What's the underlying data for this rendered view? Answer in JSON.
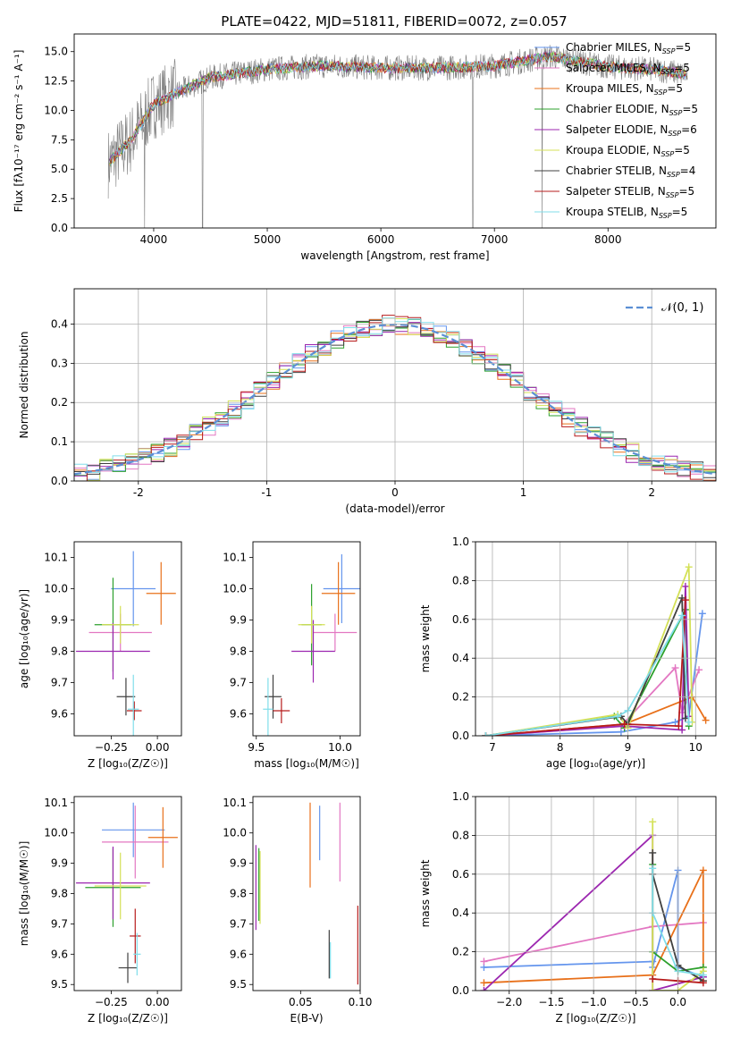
{
  "figure_title": "PLATE=0422, MJD=51811, FIBERID=0072, z=0.057",
  "models": [
    {
      "name": "Chabrier MILES",
      "nssp": "5",
      "color": "#6495ed"
    },
    {
      "name": "Salpeter MILES",
      "nssp": "5",
      "color": "#e377c2"
    },
    {
      "name": "Kroupa MILES",
      "nssp": "5",
      "color": "#e8701a"
    },
    {
      "name": "Chabrier ELODIE",
      "nssp": "5",
      "color": "#2ca02c"
    },
    {
      "name": "Salpeter ELODIE",
      "nssp": "6",
      "color": "#9c27b0"
    },
    {
      "name": "Kroupa ELODIE",
      "nssp": "5",
      "color": "#d4e157"
    },
    {
      "name": "Chabrier STELIB",
      "nssp": "4",
      "color": "#404040"
    },
    {
      "name": "Salpeter STELIB",
      "nssp": "5",
      "color": "#b71c1c"
    },
    {
      "name": "Kroupa STELIB",
      "nssp": "5",
      "color": "#80deea"
    }
  ],
  "nssp_prefix": "N",
  "nssp_sub": "SSP",
  "spectrum_color": "#7f7f7f",
  "chart_data": [
    {
      "id": "spectrum",
      "type": "line",
      "xlabel": "wavelength [Angstrom, rest frame]",
      "ylabel": "Flux [fλ10⁻¹⁷ erg cm⁻² s⁻¹ A⁻¹]",
      "xlim": [
        3300,
        8950
      ],
      "ylim": [
        0,
        16.5
      ],
      "xticks": [
        4000,
        5000,
        6000,
        7000,
        8000
      ],
      "yticks": [
        0.0,
        2.5,
        5.0,
        7.5,
        10.0,
        12.5,
        15.0
      ],
      "continuum_x": [
        3600,
        3800,
        4000,
        4200,
        4500,
        5000,
        5500,
        6000,
        6500,
        7000,
        7500,
        8000,
        8500,
        8700
      ],
      "continuum_y": [
        5.5,
        7.5,
        10.5,
        11.5,
        12.8,
        13.5,
        13.8,
        13.6,
        13.6,
        13.8,
        14.6,
        13.7,
        13.4,
        13.0
      ],
      "spikes_x": [
        3920,
        4430,
        6810,
        7420
      ],
      "legend": "upper-right"
    },
    {
      "id": "residuals",
      "type": "histogram",
      "xlabel": "(data-model)/error",
      "ylabel": "Normed distribution",
      "xlim": [
        -2.5,
        2.5
      ],
      "ylim": [
        0,
        0.49
      ],
      "xticks": [
        -2,
        -1,
        0,
        1,
        2
      ],
      "yticks": [
        0.0,
        0.1,
        0.2,
        0.3,
        0.4
      ],
      "legend_label": "𝒩(0, 1)",
      "legend_color": "#5b8fd4",
      "bin_width": 0.1,
      "grid": true
    },
    {
      "id": "age_vs_Z",
      "type": "errorbar",
      "xlabel": "Z [log₁₀(Z/Z☉)]",
      "ylabel": "age  [log₁₀(age/yr)]",
      "xlim": [
        -0.45,
        0.13
      ],
      "ylim": [
        9.53,
        10.15
      ],
      "xticks": [
        -0.25,
        0.0
      ],
      "xtick_labels": [
        "−0.25",
        "0.00"
      ],
      "yticks": [
        9.6,
        9.7,
        9.8,
        9.9,
        10.0,
        10.1
      ],
      "points": [
        {
          "m": 0,
          "x": -0.13,
          "y": 10.0,
          "xe": 0.12,
          "ye": 0.12
        },
        {
          "m": 1,
          "x": -0.2,
          "y": 9.86,
          "xe": 0.17,
          "ye": 0.06
        },
        {
          "m": 2,
          "x": 0.02,
          "y": 9.985,
          "xe": 0.08,
          "ye": 0.1
        },
        {
          "m": 3,
          "x": -0.24,
          "y": 9.885,
          "xe": 0.1,
          "ye": 0.15
        },
        {
          "m": 4,
          "x": -0.24,
          "y": 9.8,
          "xe": 0.2,
          "ye": 0.09
        },
        {
          "m": 5,
          "x": -0.2,
          "y": 9.885,
          "xe": 0.1,
          "ye": 0.06
        },
        {
          "m": 6,
          "x": -0.17,
          "y": 9.655,
          "xe": 0.05,
          "ye": 0.06
        },
        {
          "m": 7,
          "x": -0.125,
          "y": 9.61,
          "xe": 0.04,
          "ye": 0.03
        },
        {
          "m": 8,
          "x": -0.13,
          "y": 9.615,
          "xe": 0.03,
          "ye": 0.11
        }
      ]
    },
    {
      "id": "age_vs_mass",
      "type": "errorbar",
      "xlabel": "mass [log₁₀(M/M☉)]",
      "xlim": [
        9.48,
        10.12
      ],
      "ylim": [
        9.53,
        10.15
      ],
      "xticks": [
        9.5,
        10.0
      ],
      "xtick_labels": [
        "9.5",
        "10.0"
      ],
      "yticks": [
        9.6,
        9.7,
        9.8,
        9.9,
        10.0,
        10.1
      ],
      "points": [
        {
          "m": 0,
          "x": 10.01,
          "y": 10.0,
          "xe": 0.11,
          "ye": 0.11
        },
        {
          "m": 1,
          "x": 9.97,
          "y": 9.86,
          "xe": 0.13,
          "ye": 0.06
        },
        {
          "m": 2,
          "x": 9.99,
          "y": 9.985,
          "xe": 0.1,
          "ye": 0.1
        },
        {
          "m": 3,
          "x": 9.83,
          "y": 9.885,
          "xe": 0.06,
          "ye": 0.13
        },
        {
          "m": 4,
          "x": 9.84,
          "y": 9.8,
          "xe": 0.13,
          "ye": 0.1
        },
        {
          "m": 5,
          "x": 9.83,
          "y": 9.885,
          "xe": 0.08,
          "ye": 0.06
        },
        {
          "m": 6,
          "x": 9.6,
          "y": 9.655,
          "xe": 0.05,
          "ye": 0.07
        },
        {
          "m": 7,
          "x": 9.65,
          "y": 9.61,
          "xe": 0.05,
          "ye": 0.04
        },
        {
          "m": 8,
          "x": 9.57,
          "y": 9.615,
          "xe": 0.03,
          "ye": 0.1
        }
      ]
    },
    {
      "id": "massweight_vs_age",
      "type": "line",
      "xlabel": "age  [log₁₀(age/yr)]",
      "ylabel": "mass weight",
      "xlim": [
        6.75,
        10.3
      ],
      "ylim": [
        0,
        1.0
      ],
      "xticks": [
        7,
        8,
        9,
        10
      ],
      "yticks": [
        0.0,
        0.2,
        0.4,
        0.6,
        0.8,
        1.0
      ],
      "grid": true,
      "series": [
        {
          "m": 0,
          "x": [
            6.9,
            8.9,
            9.7,
            9.9,
            10.1
          ],
          "y": [
            0.0,
            0.02,
            0.07,
            0.1,
            0.63
          ]
        },
        {
          "m": 1,
          "x": [
            6.9,
            8.9,
            9.7,
            9.8,
            10.05
          ],
          "y": [
            0.0,
            0.05,
            0.35,
            0.12,
            0.34
          ]
        },
        {
          "m": 2,
          "x": [
            6.9,
            8.95,
            9.95,
            10.15
          ],
          "y": [
            0.0,
            0.06,
            0.2,
            0.08
          ]
        },
        {
          "m": 3,
          "x": [
            6.9,
            8.8,
            8.95,
            9.85,
            9.9
          ],
          "y": [
            0.0,
            0.1,
            0.04,
            0.65,
            0.05
          ]
        },
        {
          "m": 4,
          "x": [
            6.9,
            8.95,
            9.8,
            9.85,
            9.9
          ],
          "y": [
            0.0,
            0.05,
            0.03,
            0.77,
            0.1
          ]
        },
        {
          "m": 5,
          "x": [
            6.9,
            8.85,
            9.0,
            9.9,
            9.95
          ],
          "y": [
            0.0,
            0.11,
            0.04,
            0.87,
            0.07
          ]
        },
        {
          "m": 6,
          "x": [
            6.9,
            8.9,
            9.0,
            9.8,
            9.85
          ],
          "y": [
            0.0,
            0.1,
            0.06,
            0.71,
            0.09
          ]
        },
        {
          "m": 7,
          "x": [
            6.9,
            8.95,
            9.75,
            9.85
          ],
          "y": [
            0.0,
            0.06,
            0.05,
            0.7
          ]
        },
        {
          "m": 8,
          "x": [
            6.9,
            8.85,
            9.0,
            9.8,
            9.9
          ],
          "y": [
            0.0,
            0.1,
            0.13,
            0.62,
            0.07
          ]
        }
      ]
    },
    {
      "id": "mass_vs_Z",
      "type": "errorbar",
      "xlabel": "Z [log₁₀(Z/Z☉)]",
      "ylabel": "mass [log₁₀(M/M☉)]",
      "xlim": [
        -0.45,
        0.13
      ],
      "ylim": [
        9.48,
        10.12
      ],
      "xticks": [
        -0.25,
        0.0
      ],
      "xtick_labels": [
        "−0.25",
        "0.00"
      ],
      "yticks": [
        9.5,
        9.6,
        9.7,
        9.8,
        9.9,
        10.0,
        10.1
      ],
      "points": [
        {
          "m": 0,
          "x": -0.13,
          "y": 10.01,
          "xe": 0.17,
          "ye": 0.09
        },
        {
          "m": 1,
          "x": -0.12,
          "y": 9.97,
          "xe": 0.18,
          "ye": 0.12
        },
        {
          "m": 2,
          "x": 0.03,
          "y": 9.985,
          "xe": 0.08,
          "ye": 0.1
        },
        {
          "m": 3,
          "x": -0.24,
          "y": 9.82,
          "xe": 0.15,
          "ye": 0.13
        },
        {
          "m": 4,
          "x": -0.24,
          "y": 9.835,
          "xe": 0.2,
          "ye": 0.12
        },
        {
          "m": 5,
          "x": -0.2,
          "y": 9.825,
          "xe": 0.14,
          "ye": 0.11
        },
        {
          "m": 6,
          "x": -0.16,
          "y": 9.555,
          "xe": 0.05,
          "ye": 0.05
        },
        {
          "m": 7,
          "x": -0.12,
          "y": 9.66,
          "xe": 0.03,
          "ye": 0.09
        },
        {
          "m": 8,
          "x": -0.11,
          "y": 9.6,
          "xe": 0.02,
          "ye": 0.07
        }
      ]
    },
    {
      "id": "mass_vs_ebv",
      "type": "errorbar",
      "xlabel": "E(B-V)",
      "xlim": [
        0.01,
        0.1
      ],
      "ylim": [
        9.48,
        10.12
      ],
      "xticks": [
        0.05,
        0.1
      ],
      "xtick_labels": [
        "0.05",
        "0.10"
      ],
      "yticks": [
        9.5,
        9.6,
        9.7,
        9.8,
        9.9,
        10.0,
        10.1
      ],
      "points": [
        {
          "m": 0,
          "x": 0.066,
          "y": 10.0,
          "xe": 0,
          "ye": 0.09
        },
        {
          "m": 1,
          "x": 0.083,
          "y": 9.97,
          "xe": 0,
          "ye": 0.13
        },
        {
          "m": 2,
          "x": 0.058,
          "y": 9.96,
          "xe": 0,
          "ye": 0.14
        },
        {
          "m": 3,
          "x": 0.015,
          "y": 9.83,
          "xe": 0,
          "ye": 0.12
        },
        {
          "m": 4,
          "x": 0.0125,
          "y": 9.82,
          "xe": 0,
          "ye": 0.14
        },
        {
          "m": 5,
          "x": 0.016,
          "y": 9.82,
          "xe": 0,
          "ye": 0.12
        },
        {
          "m": 6,
          "x": 0.074,
          "y": 9.6,
          "xe": 0,
          "ye": 0.08
        },
        {
          "m": 7,
          "x": 0.098,
          "y": 9.63,
          "xe": 0,
          "ye": 0.13
        },
        {
          "m": 8,
          "x": 0.075,
          "y": 9.58,
          "xe": 0,
          "ye": 0.06
        }
      ]
    },
    {
      "id": "massweight_vs_Z",
      "type": "line",
      "xlabel": "Z [log₁₀(Z/Z☉)]",
      "ylabel": "mass weight",
      "xlim": [
        -2.4,
        0.45
      ],
      "ylim": [
        0,
        1.0
      ],
      "xticks": [
        -2.0,
        -1.5,
        -1.0,
        -0.5,
        0.0
      ],
      "xtick_labels": [
        "−2.0",
        "−1.5",
        "−1.0",
        "−0.5",
        "0.0"
      ],
      "yticks": [
        0.0,
        0.2,
        0.4,
        0.6,
        0.8,
        1.0
      ],
      "grid": true,
      "series": [
        {
          "m": 0,
          "x": [
            -2.3,
            -0.3,
            -0.3,
            0.0,
            0.0,
            0.3
          ],
          "y": [
            0.12,
            0.15,
            0.12,
            0.62,
            0.12,
            0.07
          ]
        },
        {
          "m": 1,
          "x": [
            -2.3,
            -0.3,
            0.3
          ],
          "y": [
            0.15,
            0.33,
            0.35
          ]
        },
        {
          "m": 2,
          "x": [
            -2.3,
            -0.3,
            0.3,
            0.3
          ],
          "y": [
            0.04,
            0.08,
            0.62,
            0.05
          ]
        },
        {
          "m": 3,
          "x": [
            -0.3,
            -0.3,
            0.0,
            0.3
          ],
          "y": [
            0.65,
            0.2,
            0.1,
            0.12
          ]
        },
        {
          "m": 4,
          "x": [
            -2.3,
            -0.3,
            -0.3,
            0.3
          ],
          "y": [
            0.0,
            0.8,
            0.0,
            0.07
          ]
        },
        {
          "m": 5,
          "x": [
            -0.3,
            -0.3,
            0.0,
            0.3
          ],
          "y": [
            0.87,
            0.0,
            0.0,
            0.1
          ]
        },
        {
          "m": 6,
          "x": [
            -0.3,
            -0.3,
            0.0,
            0.3
          ],
          "y": [
            0.71,
            0.6,
            0.13,
            0.05
          ]
        },
        {
          "m": 7,
          "x": [
            -0.3,
            0.0,
            0.3
          ],
          "y": [
            0.06,
            0.05,
            0.04
          ]
        },
        {
          "m": 8,
          "x": [
            -0.3,
            -0.3,
            0.0,
            0.3
          ],
          "y": [
            0.63,
            0.4,
            0.1,
            0.08
          ]
        }
      ]
    }
  ]
}
